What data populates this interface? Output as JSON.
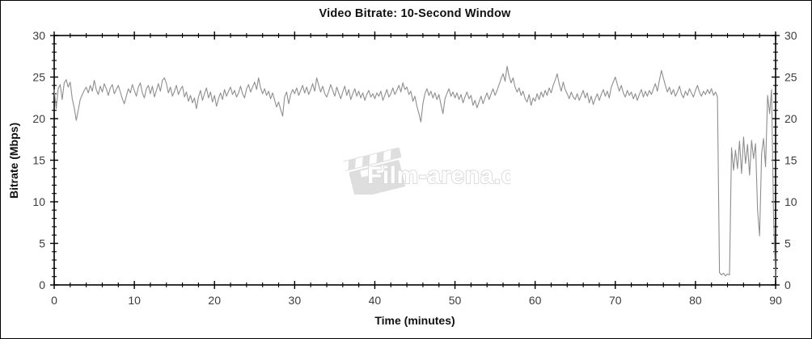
{
  "watermark": {
    "text": "Film-arena.cz"
  },
  "chart_data": {
    "type": "line",
    "title": "Video Bitrate: 10-Second Window",
    "xlabel": "Time (minutes)",
    "ylabel": "Bitrate (Mbps)",
    "xlim": [
      0,
      90
    ],
    "ylim": [
      0,
      30
    ],
    "x_ticks": [
      0,
      10,
      20,
      30,
      40,
      50,
      60,
      70,
      80,
      90
    ],
    "x_minor_step": 2,
    "y_ticks": [
      0,
      5,
      10,
      15,
      20,
      25,
      30
    ],
    "y_minor_step": 1,
    "y_axis_right_mirror": true,
    "grid": false,
    "legend": null,
    "line_color": "#8e8e8e",
    "axis_color": "#000000",
    "tick_label_color": "#3d3d3d",
    "series": [
      {
        "name": "video-bitrate-10s-window",
        "t_start": 0,
        "t_step": 0.25,
        "values": [
          23.5,
          21.2,
          23.6,
          24.1,
          22.3,
          24.3,
          24.7,
          23.8,
          24.4,
          22.4,
          21.3,
          19.8,
          21.0,
          22.3,
          22.9,
          23.4,
          23.8,
          23.1,
          24.0,
          23.3,
          24.6,
          23.5,
          22.9,
          23.9,
          23.2,
          24.2,
          23.6,
          22.8,
          23.7,
          24.1,
          23.0,
          23.5,
          24.0,
          23.2,
          22.4,
          21.8,
          22.7,
          23.6,
          23.1,
          24.1,
          23.4,
          22.7,
          23.8,
          24.3,
          23.1,
          22.5,
          23.6,
          24.0,
          23.0,
          23.9,
          22.6,
          23.4,
          24.2,
          23.3,
          24.6,
          24.9,
          24.2,
          23.1,
          23.8,
          22.7,
          23.3,
          24.0,
          22.9,
          23.5,
          23.9,
          22.6,
          23.2,
          22.1,
          22.8,
          21.9,
          22.5,
          21.2,
          22.6,
          23.4,
          22.2,
          23.0,
          23.7,
          22.5,
          23.2,
          22.0,
          22.8,
          21.5,
          22.4,
          23.1,
          22.3,
          23.5,
          22.7,
          23.3,
          23.8,
          22.9,
          23.4,
          22.6,
          23.1,
          23.9,
          23.0,
          22.5,
          23.6,
          24.1,
          23.2,
          23.8,
          24.4,
          23.5,
          24.9,
          23.7,
          23.0,
          23.6,
          22.8,
          23.3,
          22.4,
          23.1,
          22.2,
          21.4,
          22.0,
          21.1,
          20.3,
          22.6,
          23.2,
          21.8,
          22.9,
          23.5,
          23.0,
          23.7,
          22.8,
          23.4,
          24.0,
          23.1,
          23.8,
          22.9,
          23.5,
          24.2,
          23.3,
          24.9,
          24.0,
          23.2,
          23.9,
          23.0,
          22.6,
          23.3,
          24.1,
          23.4,
          22.7,
          23.8,
          23.1,
          22.4,
          23.2,
          23.9,
          22.8,
          23.5,
          22.3,
          23.0,
          23.6,
          22.7,
          23.3,
          22.5,
          23.1,
          22.2,
          22.9,
          23.4,
          22.6,
          23.0,
          22.4,
          23.1,
          22.7,
          23.3,
          22.2,
          22.8,
          23.5,
          22.6,
          23.0,
          23.7,
          22.9,
          23.4,
          24.0,
          23.2,
          24.3,
          23.5,
          23.8,
          22.9,
          23.3,
          22.1,
          22.7,
          21.5,
          20.6,
          19.6,
          21.8,
          23.0,
          23.6,
          22.8,
          23.3,
          22.5,
          23.1,
          22.3,
          22.9,
          21.7,
          20.6,
          22.4,
          23.0,
          23.6,
          22.7,
          23.2,
          22.5,
          23.1,
          22.3,
          22.9,
          21.9,
          22.6,
          23.2,
          22.4,
          22.8,
          21.6,
          22.2,
          21.3,
          22.0,
          22.7,
          21.8,
          22.5,
          23.1,
          22.3,
          23.0,
          23.6,
          22.8,
          23.4,
          24.1,
          24.8,
          25.4,
          24.5,
          26.3,
          25.1,
          24.3,
          24.9,
          23.8,
          23.2,
          23.7,
          22.8,
          23.3,
          22.4,
          22.0,
          22.9,
          21.6,
          22.5,
          22.1,
          23.0,
          22.3,
          23.2,
          22.6,
          23.4,
          22.8,
          23.7,
          23.1,
          24.0,
          24.6,
          25.4,
          24.2,
          23.3,
          24.4,
          23.5,
          23.0,
          22.4,
          23.2,
          22.6,
          22.3,
          23.0,
          22.2,
          22.8,
          23.4,
          22.5,
          23.1,
          21.9,
          22.7,
          21.7,
          22.4,
          23.0,
          22.2,
          22.9,
          23.5,
          22.7,
          23.3,
          22.5,
          23.8,
          24.4,
          25.0,
          24.1,
          23.3,
          24.0,
          23.1,
          22.6,
          23.4,
          22.8,
          23.2,
          22.4,
          23.0,
          22.2,
          22.9,
          23.5,
          22.6,
          23.3,
          22.7,
          23.4,
          22.9,
          23.6,
          24.2,
          23.3,
          24.6,
          25.8,
          24.9,
          24.0,
          23.2,
          23.8,
          22.9,
          23.5,
          22.7,
          23.2,
          23.9,
          23.0,
          22.5,
          23.3,
          22.8,
          23.6,
          23.1,
          22.6,
          23.4,
          24.0,
          23.2,
          22.7,
          23.3,
          22.9,
          23.5,
          23.0,
          23.6,
          22.8,
          23.2,
          22.6,
          1.5,
          1.2,
          1.4,
          1.1,
          1.3,
          1.2,
          16.5,
          13.8,
          16.2,
          14.0,
          17.3,
          13.4,
          17.8,
          14.6,
          16.9,
          13.2,
          17.4,
          15.2,
          17.0,
          9.0,
          5.9,
          15.8,
          17.6,
          14.2,
          22.8,
          20.6,
          23.5,
          8.0,
          0.9
        ]
      }
    ]
  }
}
